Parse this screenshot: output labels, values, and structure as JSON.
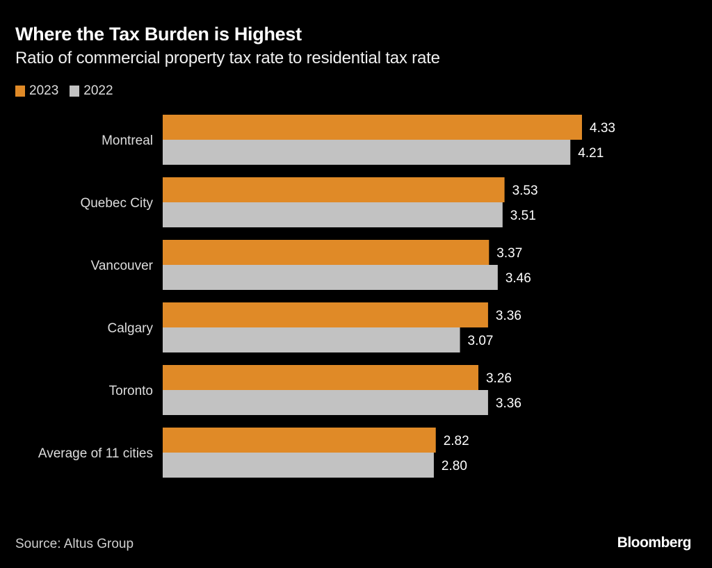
{
  "chart_data": {
    "type": "bar",
    "orientation": "horizontal",
    "title": "Where the Tax Burden is Highest",
    "subtitle": "Ratio of commercial property tax rate to residential tax rate",
    "categories": [
      "Montreal",
      "Quebec City",
      "Vancouver",
      "Calgary",
      "Toronto",
      "Average of 11 cities"
    ],
    "series": [
      {
        "name": "2023",
        "color": "#e08a27",
        "values": [
          4.33,
          3.53,
          3.37,
          3.36,
          3.26,
          2.82
        ],
        "labels": [
          "4.33",
          "3.53",
          "3.37",
          "3.36",
          "3.26",
          "2.82"
        ]
      },
      {
        "name": "2022",
        "color": "#c2c2c2",
        "values": [
          4.21,
          3.51,
          3.46,
          3.07,
          3.36,
          2.8
        ],
        "labels": [
          "4.21",
          "3.51",
          "3.46",
          "3.07",
          "3.36",
          "2.80"
        ]
      }
    ],
    "xlim": [
      0,
      4.33
    ],
    "grid": false,
    "legend": "top-left",
    "xlabel": "",
    "ylabel": ""
  },
  "footer": {
    "source": "Source: Altus Group",
    "brand": "Bloomberg"
  }
}
